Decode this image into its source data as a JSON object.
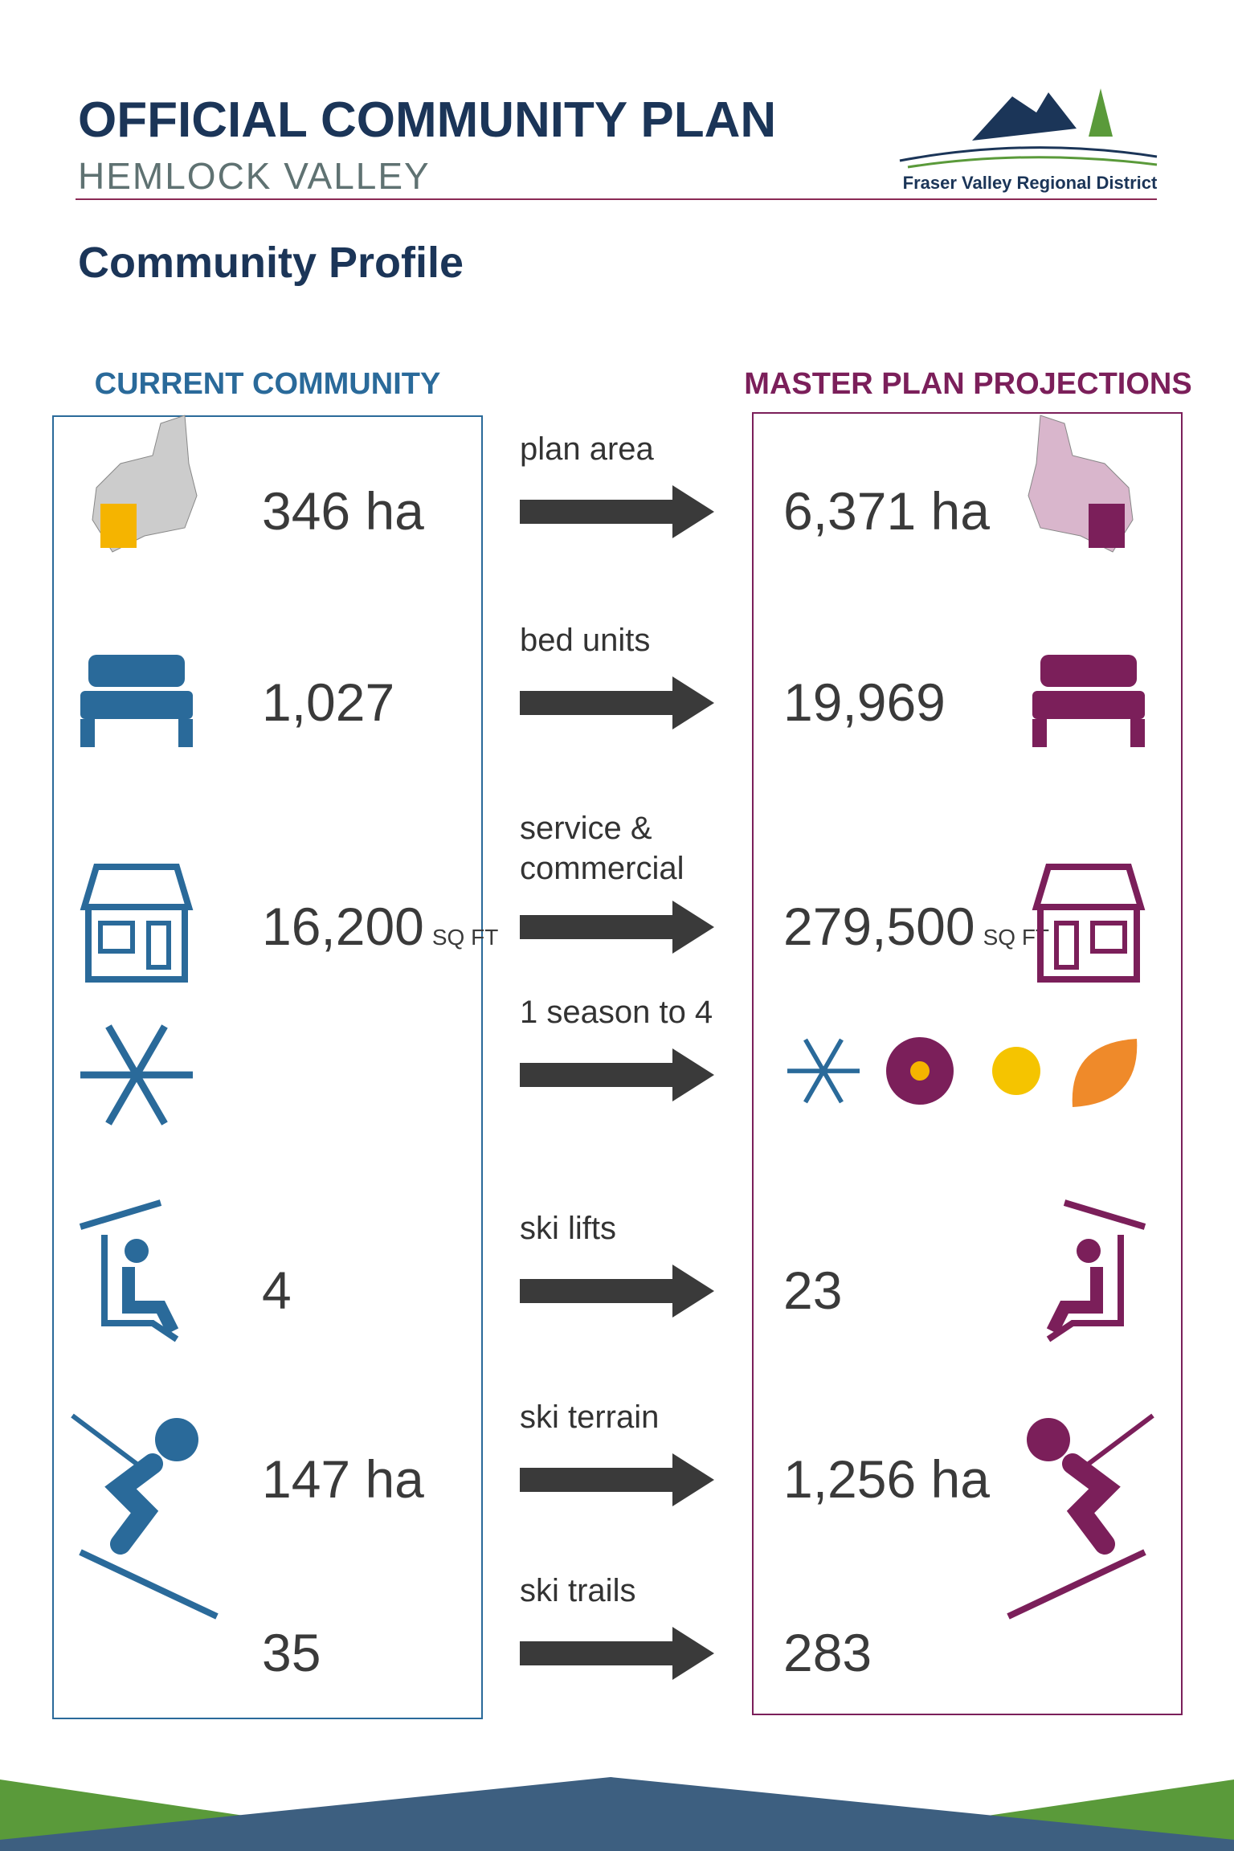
{
  "header": {
    "title": "OFFICIAL COMMUNITY PLAN",
    "subtitle": "HEMLOCK VALLEY",
    "logo_text": "Fraser Valley Regional District"
  },
  "section_title": "Community Profile",
  "current_heading": "CURRENT COMMUNITY",
  "projections_heading": "MASTER PLAN PROJECTIONS",
  "rows": [
    {
      "label": "plan area",
      "current": "346 ha",
      "projected": "6,371 ha"
    },
    {
      "label": "bed units",
      "current": "1,027",
      "projected": "19,969"
    },
    {
      "label": "service & commercial",
      "current": "16,200",
      "current_unit": "SQ FT",
      "projected": "279,500",
      "projected_unit": "SQ FT"
    },
    {
      "label": "1 season to 4"
    },
    {
      "label": "ski lifts",
      "current": "4",
      "projected": "23"
    },
    {
      "label": "ski terrain",
      "current": "147 ha",
      "projected": "1,256 ha"
    },
    {
      "label": "ski trails",
      "current": "35",
      "projected": "283"
    }
  ]
}
